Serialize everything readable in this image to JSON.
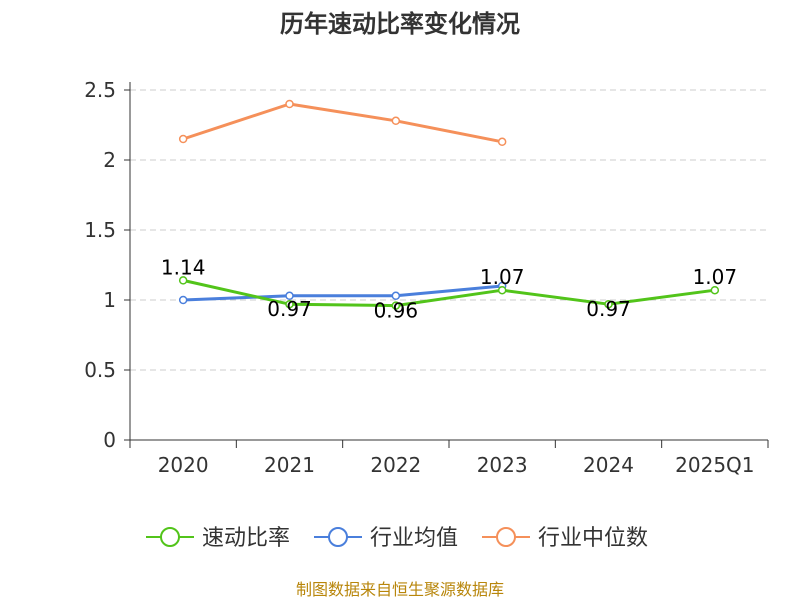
{
  "chart_data": {
    "type": "line",
    "title": "历年速动比率变化情况",
    "categories": [
      "2020",
      "2021",
      "2022",
      "2023",
      "2024",
      "2025Q1"
    ],
    "ylim": [
      0,
      2.5
    ],
    "yticks": [
      "0",
      "0.5",
      "1",
      "1.5",
      "2",
      "2.5"
    ],
    "grid": true,
    "legend_position": "bottom",
    "series": [
      {
        "name": "速动比率",
        "color": "#52c41a",
        "values": [
          1.14,
          0.97,
          0.96,
          1.07,
          0.97,
          1.07
        ],
        "labels": [
          "1.14",
          "0.97",
          "0.96",
          "1.07",
          "0.97",
          "1.07"
        ]
      },
      {
        "name": "行业均值",
        "color": "#4a7fdc",
        "values": [
          1.0,
          1.03,
          1.03,
          1.1,
          null,
          null
        ]
      },
      {
        "name": "行业中位数",
        "color": "#f5905a",
        "values": [
          2.15,
          2.4,
          2.28,
          2.13,
          null,
          null
        ]
      }
    ],
    "source": "制图数据来自恒生聚源数据库"
  }
}
